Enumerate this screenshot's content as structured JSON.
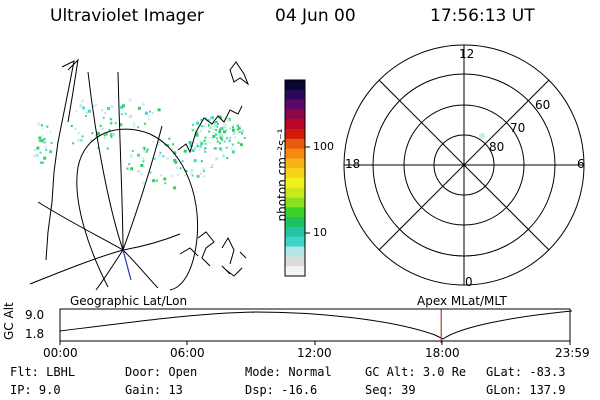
{
  "header": {
    "instrument": "Ultraviolet Imager",
    "date": "04 Jun 00",
    "time": "17:56:13 UT"
  },
  "colorbar": {
    "unit_label": "photon cm⁻²s⁻¹",
    "ticks": [
      "100",
      "10"
    ],
    "colors": [
      "#f4f4f4",
      "#dcdcdc",
      "#b4e6e6",
      "#3cd6c8",
      "#26c2a8",
      "#1ec060",
      "#3bd02a",
      "#8ae21e",
      "#c8ea1a",
      "#f0f01c",
      "#f8d418",
      "#f8b414",
      "#f48a10",
      "#e85a0c",
      "#d41a0a",
      "#b8082a",
      "#8c0848",
      "#5a0a66",
      "#2a0a58",
      "#0a0430"
    ]
  },
  "geo_panel": {
    "title": "Geographic Lat/Lon",
    "speckle_colors": [
      "#43d6c4",
      "#b7e8e8",
      "#2fcf5c",
      "#d6eeee"
    ]
  },
  "polar_panel": {
    "title": "Apex MLat/MLT",
    "mlt_labels": {
      "top": "12",
      "bottom": "0",
      "left": "18",
      "right": "6"
    },
    "lat_labels": [
      "60",
      "70",
      "80"
    ]
  },
  "altitude_plot": {
    "ylabel": "GC Alt",
    "yticks": [
      "9.0",
      "1.8"
    ],
    "xticks": [
      "00:00",
      "06:00",
      "12:00",
      "18:00",
      "23:59"
    ],
    "marker_color": "#c0392b",
    "marker_time_hours": 17.94
  },
  "info": {
    "row1": [
      {
        "label": "Flt:",
        "value": "LBHL"
      },
      {
        "label": "Door:",
        "value": "Open"
      },
      {
        "label": "Mode:",
        "value": "Normal"
      },
      {
        "label": "GC Alt:",
        "value": "3.0 Re"
      },
      {
        "label": "GLat:",
        "value": "-83.3"
      }
    ],
    "row2": [
      {
        "label": "IP:",
        "value": "9.0"
      },
      {
        "label": "Gain:",
        "value": "13"
      },
      {
        "label": "Dsp:",
        "value": "-16.6"
      },
      {
        "label": "Seq:",
        "value": "39"
      },
      {
        "label": "GLon:",
        "value": "137.9"
      }
    ]
  }
}
